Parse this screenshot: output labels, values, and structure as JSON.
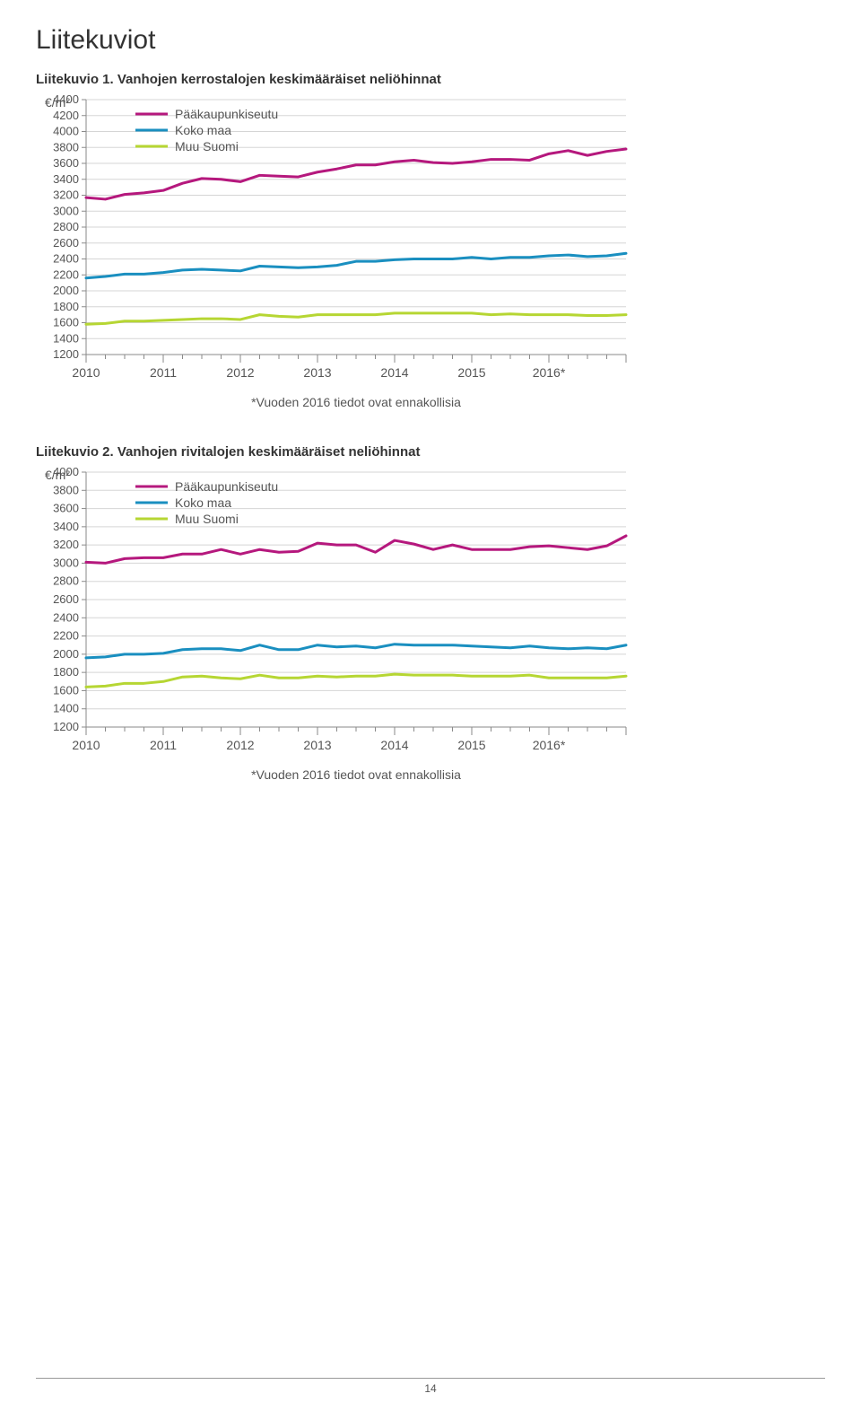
{
  "page": {
    "title": "Liitekuviot",
    "page_number": "14"
  },
  "chart1": {
    "title": "Liitekuvio 1. Vanhojen kerrostalojen keskimääräiset neliöhinnat",
    "type": "line",
    "y_axis_label": "€/m²",
    "y_min": 1200,
    "y_max": 4400,
    "y_ticks": [
      1200,
      1400,
      1600,
      1800,
      2000,
      2200,
      2400,
      2600,
      2800,
      3000,
      3200,
      3400,
      3600,
      3800,
      4000,
      4200,
      4400
    ],
    "x_labels": [
      "2010",
      "2011",
      "2012",
      "2013",
      "2014",
      "2015",
      "2016*"
    ],
    "footnote": "*Vuoden 2016 tiedot ovat ennakollisia",
    "background_color": "#ffffff",
    "grid_color": "#d5d5d5",
    "axis_color": "#8a8a8a",
    "legend": [
      {
        "label": "Pääkaupunkiseutu",
        "color": "#b5187d"
      },
      {
        "label": "Koko maa",
        "color": "#1a8fc0"
      },
      {
        "label": "Muu Suomi",
        "color": "#b6d633"
      }
    ],
    "series": {
      "paakaupunkiseutu": {
        "color": "#b5187d",
        "width": 3,
        "values": [
          3170,
          3150,
          3210,
          3230,
          3260,
          3350,
          3410,
          3400,
          3370,
          3450,
          3440,
          3430,
          3490,
          3530,
          3580,
          3580,
          3620,
          3640,
          3610,
          3600,
          3620,
          3650,
          3650,
          3640,
          3720,
          3760,
          3700,
          3750,
          3780
        ]
      },
      "koko_maa": {
        "color": "#1a8fc0",
        "width": 3,
        "values": [
          2160,
          2180,
          2210,
          2210,
          2230,
          2260,
          2270,
          2260,
          2250,
          2310,
          2300,
          2290,
          2300,
          2320,
          2370,
          2370,
          2390,
          2400,
          2400,
          2400,
          2420,
          2400,
          2420,
          2420,
          2440,
          2450,
          2430,
          2440,
          2470
        ]
      },
      "muu_suomi": {
        "color": "#b6d633",
        "width": 3,
        "values": [
          1580,
          1590,
          1620,
          1620,
          1630,
          1640,
          1650,
          1650,
          1640,
          1700,
          1680,
          1670,
          1700,
          1700,
          1700,
          1700,
          1720,
          1720,
          1720,
          1720,
          1720,
          1700,
          1710,
          1700,
          1700,
          1700,
          1690,
          1690,
          1700
        ]
      }
    }
  },
  "chart2": {
    "title": "Liitekuvio 2. Vanhojen rivitalojen keskimääräiset neliöhinnat",
    "type": "line",
    "y_axis_label": "€/m²",
    "y_min": 1200,
    "y_max": 4000,
    "y_ticks": [
      1200,
      1400,
      1600,
      1800,
      2000,
      2200,
      2400,
      2600,
      2800,
      3000,
      3200,
      3400,
      3600,
      3800,
      4000
    ],
    "x_labels": [
      "2010",
      "2011",
      "2012",
      "2013",
      "2014",
      "2015",
      "2016*"
    ],
    "footnote": "*Vuoden 2016 tiedot ovat ennakollisia",
    "background_color": "#ffffff",
    "grid_color": "#d5d5d5",
    "axis_color": "#8a8a8a",
    "legend": [
      {
        "label": "Pääkaupunkiseutu",
        "color": "#b5187d"
      },
      {
        "label": "Koko maa",
        "color": "#1a8fc0"
      },
      {
        "label": "Muu Suomi",
        "color": "#b6d633"
      }
    ],
    "series": {
      "paakaupunkiseutu": {
        "color": "#b5187d",
        "width": 3,
        "values": [
          3010,
          3000,
          3050,
          3060,
          3060,
          3100,
          3100,
          3150,
          3100,
          3150,
          3120,
          3130,
          3220,
          3200,
          3200,
          3120,
          3250,
          3210,
          3150,
          3200,
          3150,
          3150,
          3150,
          3180,
          3190,
          3170,
          3150,
          3190,
          3300
        ]
      },
      "koko_maa": {
        "color": "#1a8fc0",
        "width": 3,
        "values": [
          1960,
          1970,
          2000,
          2000,
          2010,
          2050,
          2060,
          2060,
          2040,
          2100,
          2050,
          2050,
          2100,
          2080,
          2090,
          2070,
          2110,
          2100,
          2100,
          2100,
          2090,
          2080,
          2070,
          2090,
          2070,
          2060,
          2070,
          2060,
          2100
        ]
      },
      "muu_suomi": {
        "color": "#b6d633",
        "width": 3,
        "values": [
          1640,
          1650,
          1680,
          1680,
          1700,
          1750,
          1760,
          1740,
          1730,
          1770,
          1740,
          1740,
          1760,
          1750,
          1760,
          1760,
          1780,
          1770,
          1770,
          1770,
          1760,
          1760,
          1760,
          1770,
          1740,
          1740,
          1740,
          1740,
          1760
        ]
      }
    }
  }
}
